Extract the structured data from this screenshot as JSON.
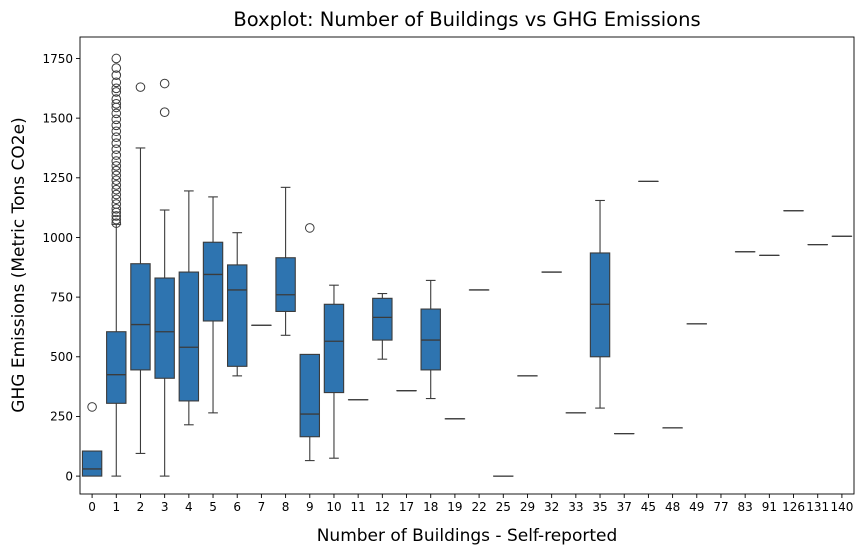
{
  "chart_data": {
    "type": "boxplot",
    "title": "Boxplot: Number of Buildings vs GHG Emissions",
    "xlabel": "Number of Buildings - Self-reported",
    "ylabel": "GHG Emissions (Metric Tons CO2e)",
    "ylim": [
      -75,
      1840
    ],
    "yticks": [
      0,
      250,
      500,
      750,
      1000,
      1250,
      1500,
      1750
    ],
    "box_color": "#2e74b0",
    "edge_color": "#3b3b3b",
    "categories": [
      "0",
      "1",
      "2",
      "3",
      "4",
      "5",
      "6",
      "7",
      "8",
      "9",
      "10",
      "11",
      "12",
      "17",
      "18",
      "19",
      "22",
      "25",
      "29",
      "32",
      "33",
      "35",
      "37",
      "45",
      "48",
      "49",
      "77",
      "83",
      "91",
      "126",
      "131",
      "140"
    ],
    "boxes": [
      {
        "q1": 0,
        "med": 30,
        "q3": 105,
        "wlo": 0,
        "whi": 105,
        "outliers": [
          290
        ]
      },
      {
        "q1": 305,
        "med": 425,
        "q3": 605,
        "wlo": 0,
        "whi": 1055,
        "outliers": [
          1060,
          1075,
          1090,
          1105,
          1120,
          1140,
          1160,
          1180,
          1200,
          1220,
          1240,
          1260,
          1280,
          1300,
          1320,
          1345,
          1370,
          1395,
          1420,
          1445,
          1470,
          1495,
          1520,
          1545,
          1560,
          1580,
          1610,
          1625,
          1650,
          1680,
          1710,
          1750
        ]
      },
      {
        "q1": 445,
        "med": 635,
        "q3": 890,
        "wlo": 95,
        "whi": 1375,
        "outliers": [
          1630
        ]
      },
      {
        "q1": 410,
        "med": 605,
        "q3": 830,
        "wlo": 0,
        "whi": 1115,
        "outliers": [
          1525,
          1645
        ]
      },
      {
        "q1": 315,
        "med": 540,
        "q3": 855,
        "wlo": 215,
        "whi": 1195,
        "outliers": []
      },
      {
        "q1": 650,
        "med": 845,
        "q3": 980,
        "wlo": 265,
        "whi": 1170,
        "outliers": []
      },
      {
        "q1": 460,
        "med": 780,
        "q3": 885,
        "wlo": 420,
        "whi": 1020,
        "outliers": []
      },
      {
        "q1": 632,
        "med": 632,
        "q3": 632,
        "wlo": 632,
        "whi": 632,
        "outliers": []
      },
      {
        "q1": 690,
        "med": 760,
        "q3": 915,
        "wlo": 590,
        "whi": 1210,
        "outliers": []
      },
      {
        "q1": 165,
        "med": 260,
        "q3": 510,
        "wlo": 65,
        "whi": 510,
        "outliers": [
          1040
        ]
      },
      {
        "q1": 350,
        "med": 565,
        "q3": 720,
        "wlo": 75,
        "whi": 800,
        "outliers": []
      },
      {
        "q1": 320,
        "med": 320,
        "q3": 320,
        "wlo": 320,
        "whi": 320,
        "outliers": []
      },
      {
        "q1": 570,
        "med": 665,
        "q3": 745,
        "wlo": 490,
        "whi": 765,
        "outliers": []
      },
      {
        "q1": 358,
        "med": 358,
        "q3": 358,
        "wlo": 358,
        "whi": 358,
        "outliers": []
      },
      {
        "q1": 445,
        "med": 570,
        "q3": 700,
        "wlo": 325,
        "whi": 820,
        "outliers": []
      },
      {
        "q1": 240,
        "med": 240,
        "q3": 240,
        "wlo": 240,
        "whi": 240,
        "outliers": []
      },
      {
        "q1": 780,
        "med": 780,
        "q3": 780,
        "wlo": 780,
        "whi": 780,
        "outliers": []
      },
      {
        "q1": 0,
        "med": 0,
        "q3": 0,
        "wlo": 0,
        "whi": 0,
        "outliers": []
      },
      {
        "q1": 420,
        "med": 420,
        "q3": 420,
        "wlo": 420,
        "whi": 420,
        "outliers": []
      },
      {
        "q1": 855,
        "med": 855,
        "q3": 855,
        "wlo": 855,
        "whi": 855,
        "outliers": []
      },
      {
        "q1": 265,
        "med": 265,
        "q3": 265,
        "wlo": 265,
        "whi": 265,
        "outliers": []
      },
      {
        "q1": 500,
        "med": 720,
        "q3": 935,
        "wlo": 285,
        "whi": 1155,
        "outliers": []
      },
      {
        "q1": 178,
        "med": 178,
        "q3": 178,
        "wlo": 178,
        "whi": 178,
        "outliers": []
      },
      {
        "q1": 1235,
        "med": 1235,
        "q3": 1235,
        "wlo": 1235,
        "whi": 1235,
        "outliers": []
      },
      {
        "q1": 202,
        "med": 202,
        "q3": 202,
        "wlo": 202,
        "whi": 202,
        "outliers": []
      },
      {
        "q1": 638,
        "med": 638,
        "q3": 638,
        "wlo": 638,
        "whi": 638,
        "outliers": []
      },
      null,
      {
        "q1": 940,
        "med": 940,
        "q3": 940,
        "wlo": 940,
        "whi": 940,
        "outliers": []
      },
      {
        "q1": 925,
        "med": 925,
        "q3": 925,
        "wlo": 925,
        "whi": 925,
        "outliers": []
      },
      {
        "q1": 1112,
        "med": 1112,
        "q3": 1112,
        "wlo": 1112,
        "whi": 1112,
        "outliers": []
      },
      {
        "q1": 970,
        "med": 970,
        "q3": 970,
        "wlo": 970,
        "whi": 970,
        "outliers": []
      },
      {
        "q1": 1005,
        "med": 1005,
        "q3": 1005,
        "wlo": 1005,
        "whi": 1005,
        "outliers": []
      }
    ]
  }
}
